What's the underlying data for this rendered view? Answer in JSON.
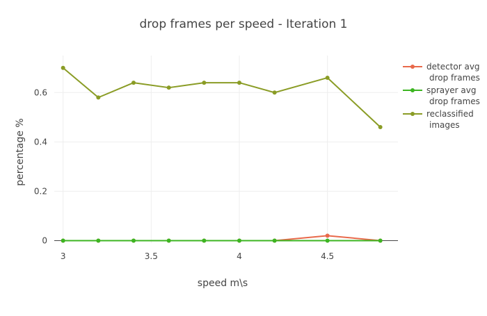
{
  "chart_data": {
    "type": "line",
    "title": "drop frames per speed - Iteration 1",
    "xlabel": "speed m\\s",
    "ylabel": "percentage %",
    "x": [
      3,
      3.2,
      3.4,
      3.6,
      3.8,
      4,
      4.2,
      4.5,
      4.8
    ],
    "xlim": [
      2.95,
      4.9
    ],
    "ylim": [
      -0.01,
      0.75
    ],
    "x_ticks": [
      3,
      3.5,
      4,
      4.5
    ],
    "x_tick_labels": [
      "3",
      "3.5",
      "4",
      "4.5"
    ],
    "y_ticks": [
      0,
      0.2,
      0.4,
      0.6
    ],
    "y_tick_labels": [
      "0",
      "0.2",
      "0.4",
      "0.6"
    ],
    "grid": true,
    "legend_position": "right",
    "series": [
      {
        "name_lines": [
          "detector avg",
          "drop frames"
        ],
        "color": "#e8694a",
        "values": [
          0,
          0,
          0,
          0,
          0,
          0,
          0,
          0.02,
          0
        ]
      },
      {
        "name_lines": [
          "sprayer avg",
          "drop frames"
        ],
        "color": "#3cb521",
        "values": [
          0,
          0,
          0,
          0,
          0,
          0,
          0,
          0,
          0
        ]
      },
      {
        "name_lines": [
          "reclassified",
          "images"
        ],
        "color": "#8a9c25",
        "values": [
          0.7,
          0.58,
          0.64,
          0.62,
          0.64,
          0.64,
          0.6,
          0.66,
          0.46
        ]
      }
    ]
  }
}
